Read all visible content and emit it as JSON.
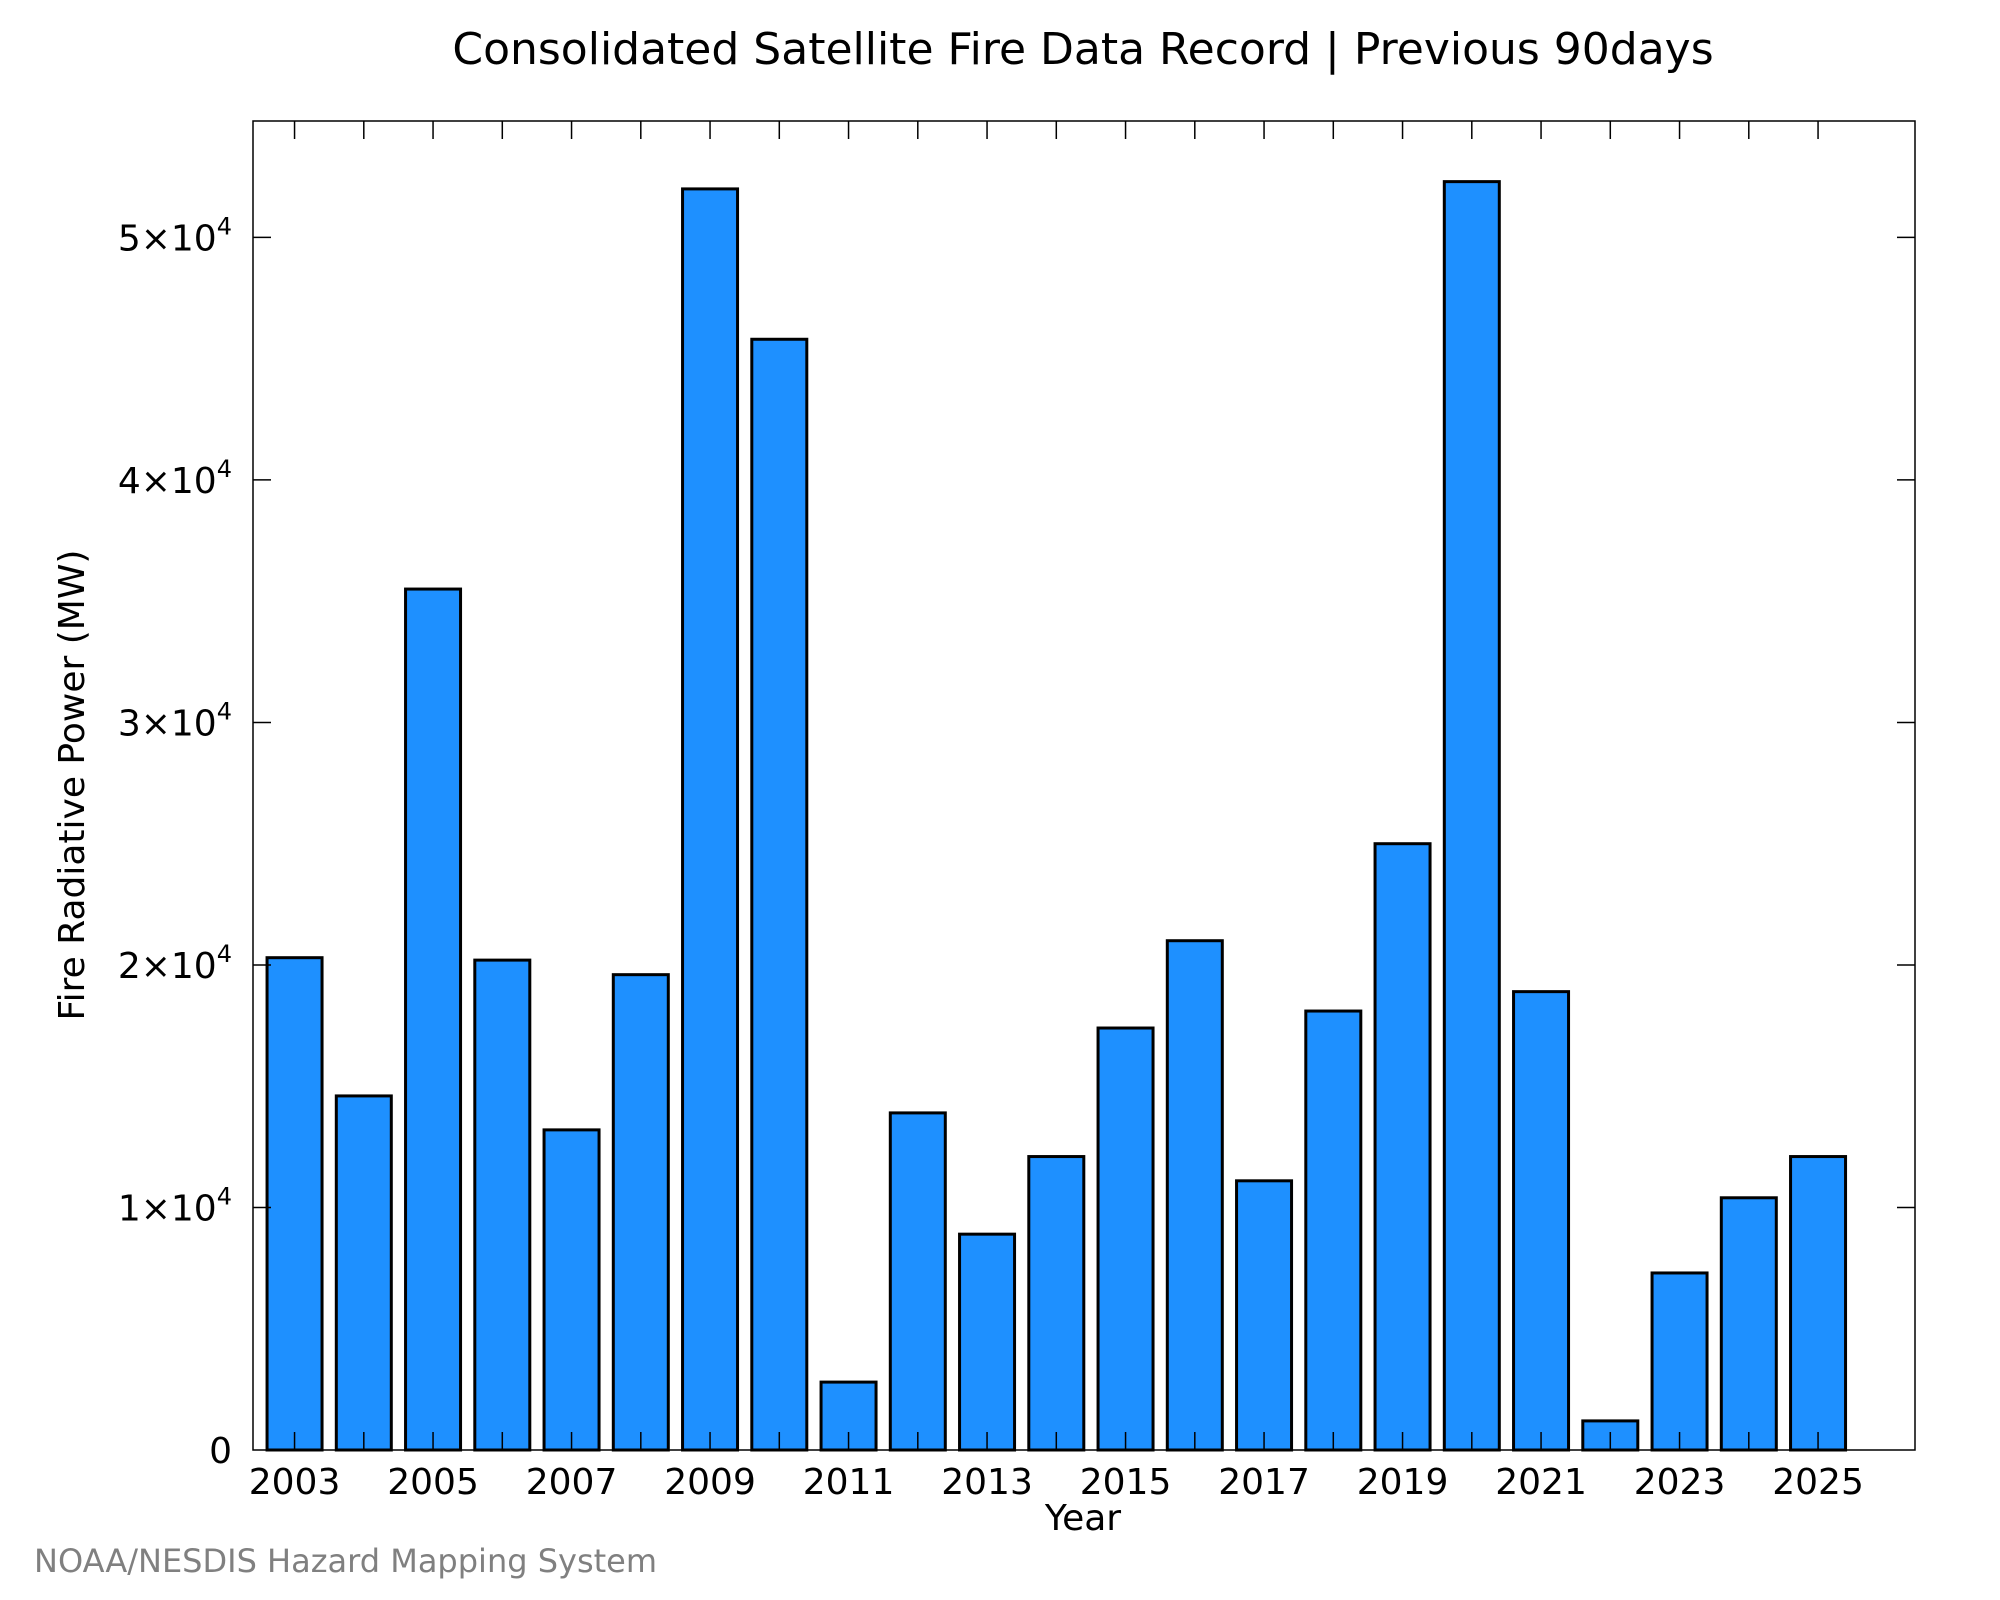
{
  "chart_data": {
    "type": "bar",
    "title": "Consolidated Satellite Fire Data Record | Previous 90days",
    "xlabel": "Year",
    "ylabel": "Fire Radiative Power (MW)",
    "categories": [
      "2003",
      "2004",
      "2005",
      "2006",
      "2007",
      "2008",
      "2009",
      "2010",
      "2011",
      "2012",
      "2013",
      "2014",
      "2015",
      "2016",
      "2017",
      "2018",
      "2019",
      "2020",
      "2021",
      "2022",
      "2023",
      "2024",
      "2025"
    ],
    "values": [
      20300,
      14600,
      35500,
      20200,
      13200,
      19600,
      52000,
      45800,
      2800,
      13900,
      8900,
      12100,
      17400,
      21000,
      11100,
      18100,
      25000,
      52300,
      18900,
      1200,
      7300,
      10400,
      12100
    ],
    "x_tick_labels": [
      "2003",
      "2005",
      "2007",
      "2009",
      "2011",
      "2013",
      "2015",
      "2017",
      "2019",
      "2021",
      "2023",
      "2025"
    ],
    "y_ticks": [
      {
        "value": 0,
        "label": "0"
      },
      {
        "value": 10000,
        "mant": "1",
        "exp": "4"
      },
      {
        "value": 20000,
        "mant": "2",
        "exp": "4"
      },
      {
        "value": 30000,
        "mant": "3",
        "exp": "4"
      },
      {
        "value": 40000,
        "mant": "4",
        "exp": "4"
      },
      {
        "value": 50000,
        "mant": "5",
        "exp": "4"
      }
    ],
    "ylim": [
      0,
      54800
    ],
    "grid": false,
    "bar_color": "#1e90ff",
    "bar_edge_color": "#000000"
  },
  "footer": {
    "credit": "NOAA/NESDIS Hazard Mapping System"
  }
}
